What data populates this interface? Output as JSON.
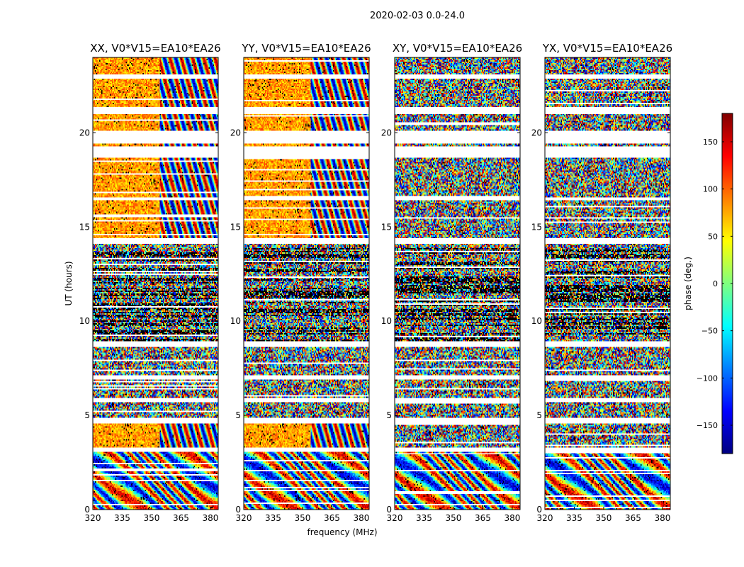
{
  "suptitle": "2020-02-03 0.0-24.0",
  "chart_data": {
    "type": "heatmap",
    "description_of_values": "phase (deg.) as a function of frequency (MHz) and UT (hours)",
    "panels": [
      {
        "title": "XX, V0*V15=EA10*EA26",
        "pol": "XX",
        "coherent_until_mhz": 354
      },
      {
        "title": "YY, V0*V15=EA10*EA26",
        "pol": "YY",
        "coherent_until_mhz": 354
      },
      {
        "title": "XY, V0*V15=EA10*EA26",
        "pol": "XY",
        "coherent_until_mhz": 320
      },
      {
        "title": "YX, V0*V15=EA10*EA26",
        "pol": "YX",
        "coherent_until_mhz": 320
      }
    ],
    "xlabel": "frequency (MHz)",
    "ylabel": "UT (hours)",
    "xlim": [
      320,
      384
    ],
    "ylim": [
      0,
      24
    ],
    "xticks": [
      320,
      335,
      350,
      365,
      380
    ],
    "xtick_labels": [
      "320",
      "335",
      "350",
      "365",
      "380"
    ],
    "yticks": [
      0,
      5,
      10,
      15,
      20
    ],
    "ytick_labels": [
      "0",
      "5",
      "10",
      "15",
      "20"
    ],
    "flagged_ut_ranges": [
      [
        22.9,
        23.1
      ],
      [
        21.0,
        21.4
      ],
      [
        19.4,
        20.1
      ],
      [
        18.7,
        19.3
      ],
      [
        16.4,
        16.6
      ],
      [
        14.1,
        14.4
      ],
      [
        8.6,
        8.9
      ],
      [
        6.9,
        7.1
      ],
      [
        5.7,
        5.9
      ],
      [
        4.6,
        4.9
      ],
      [
        3.1,
        3.3
      ],
      [
        2.0,
        2.1
      ]
    ],
    "colorbar": {
      "label": "phase (deg.)",
      "range": [
        -180,
        180
      ],
      "ticks": [
        -150,
        -100,
        -50,
        0,
        50,
        100,
        150
      ],
      "tick_labels": [
        "−150",
        "−100",
        "−50",
        "0",
        "50",
        "100",
        "150"
      ],
      "colormap": "jet",
      "colormap_stops": [
        "#00007f",
        "#0000ff",
        "#007fff",
        "#00ffff",
        "#7fff7f",
        "#ffff00",
        "#ff7f00",
        "#ff0000",
        "#7f0000"
      ]
    },
    "grid": false,
    "legend": "none"
  }
}
